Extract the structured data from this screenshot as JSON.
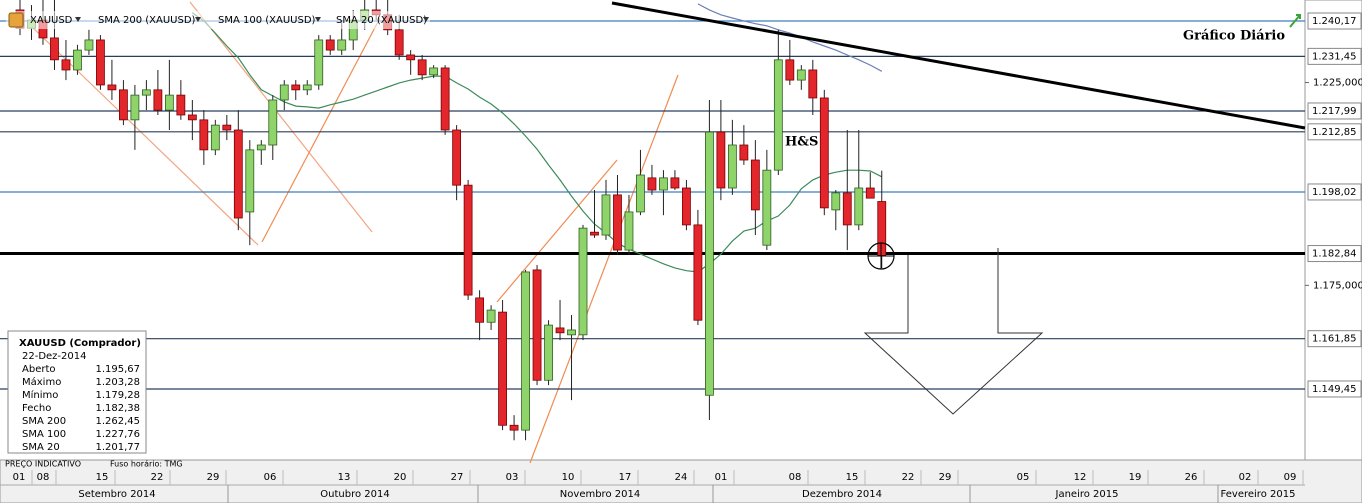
{
  "chart_data": {
    "type": "candlestick",
    "symbol": "XAUUSD",
    "up_color": "#8fd46a",
    "down_color": "#e3262c",
    "ylim": [
      1.13194,
      1.24535
    ],
    "yticks": [
      {
        "value": 1.225,
        "label": "1.225,000"
      },
      {
        "value": 1.175,
        "label": "1.175,000"
      }
    ],
    "levels": [
      {
        "value": 1.24017,
        "label": "1.240,17",
        "color": "#3d7fc1"
      },
      {
        "value": 1.23145,
        "label": "1.231,45",
        "color": "#2a3f5f"
      },
      {
        "value": 1.21799,
        "label": "1.217,99",
        "color": "#2a3f5f"
      },
      {
        "value": 1.21285,
        "label": "1.212,85",
        "color": "#2a3f5f"
      },
      {
        "value": 1.19802,
        "label": "1.198,02",
        "color": "#3d7fc1"
      },
      {
        "value": 1.18284,
        "label": "1.182,84",
        "color": "#000000"
      },
      {
        "value": 1.16185,
        "label": "1.161,85",
        "color": "#2a3f5f"
      },
      {
        "value": 1.14945,
        "label": "1.149,45",
        "color": "#2a3f5f"
      }
    ],
    "candles": {
      "open": [
        1.2429,
        1.2384,
        1.2404,
        1.236,
        1.2306,
        1.2281,
        1.233,
        1.2355,
        1.2244,
        1.2232,
        1.2158,
        1.2219,
        1.2232,
        1.2182,
        1.2219,
        1.217,
        1.2158,
        1.2084,
        1.2145,
        1.2133,
        1.1931,
        1.2084,
        1.2096,
        1.2207,
        1.2244,
        1.2232,
        1.2244,
        1.2355,
        1.233,
        1.2355,
        1.2404,
        1.2429,
        1.2417,
        1.238,
        1.2318,
        1.2306,
        1.2269,
        1.2286,
        1.2133,
        1.1997,
        1.1719,
        1.1659,
        1.1684,
        1.1405,
        1.1393,
        1.1788,
        1.1516,
        1.1645,
        1.1628,
        1.1628,
        1.1881,
        1.1874,
        1.1973,
        1.1837,
        1.1931,
        1.2015,
        1.1985,
        1.2015,
        1.199,
        1.1899,
        1.1479,
        1.2128,
        1.199,
        1.2096,
        1.2059,
        1.1849,
        1.2034,
        1.2306,
        1.2256,
        1.2281,
        1.2212,
        1.1936,
        1.1978,
        1.1899,
        1.199,
        1.19567
      ],
      "high": [
        1.2454,
        1.2441,
        1.2454,
        1.2454,
        1.2355,
        1.2343,
        1.238,
        1.2367,
        1.2306,
        1.2256,
        1.2244,
        1.2256,
        1.2281,
        1.2306,
        1.2256,
        1.2207,
        1.2182,
        1.2158,
        1.217,
        1.2182,
        1.2108,
        1.2108,
        1.2219,
        1.2256,
        1.2256,
        1.2256,
        1.2367,
        1.2367,
        1.2404,
        1.2429,
        1.2454,
        1.2454,
        1.2454,
        1.2417,
        1.233,
        1.2318,
        1.2293,
        1.2293,
        1.2145,
        1.201,
        1.1738,
        1.1701,
        1.1714,
        1.143,
        1.1788,
        1.18,
        1.1664,
        1.1714,
        1.1677,
        1.1899,
        1.1985,
        1.201,
        1.2022,
        1.1973,
        1.2084,
        1.2047,
        1.2034,
        1.2034,
        1.201,
        1.1936,
        1.2207,
        1.2207,
        1.2158,
        1.2145,
        1.2108,
        1.2084,
        1.238,
        1.2355,
        1.2293,
        1.2306,
        1.2232,
        1.1985,
        1.2133,
        1.2133,
        1.2029,
        1.20328
      ],
      "low": [
        1.2367,
        1.2355,
        1.2343,
        1.2281,
        1.2256,
        1.2269,
        1.2318,
        1.2232,
        1.2207,
        1.2145,
        1.2084,
        1.2182,
        1.217,
        1.2133,
        1.2158,
        1.2108,
        1.2047,
        1.2071,
        1.2108,
        1.1886,
        1.1849,
        1.2047,
        1.2059,
        1.2182,
        1.2207,
        1.2219,
        1.2232,
        1.2318,
        1.2318,
        1.233,
        1.238,
        1.2404,
        1.2367,
        1.2306,
        1.2269,
        1.2256,
        1.2261,
        1.2121,
        1.196,
        1.1714,
        1.1615,
        1.164,
        1.1393,
        1.1368,
        1.1368,
        1.1504,
        1.1504,
        1.1615,
        1.1467,
        1.1615,
        1.1867,
        1.1862,
        1.1825,
        1.1825,
        1.1923,
        1.1973,
        1.1923,
        1.1985,
        1.1886,
        1.1652,
        1.1418,
        1.196,
        1.1973,
        1.2047,
        1.1874,
        1.1837,
        1.2022,
        1.2244,
        1.2232,
        1.217,
        1.1923,
        1.1886,
        1.1837,
        1.1886,
        1.1965,
        1.17928
      ],
      "close": [
        1.2384,
        1.2404,
        1.236,
        1.2306,
        1.2281,
        1.233,
        1.2355,
        1.2244,
        1.2232,
        1.2158,
        1.2219,
        1.2232,
        1.2182,
        1.2219,
        1.217,
        1.2158,
        1.2084,
        1.2145,
        1.2133,
        1.1916,
        1.2084,
        1.2096,
        1.2207,
        1.2244,
        1.2232,
        1.2244,
        1.2355,
        1.233,
        1.2355,
        1.2404,
        1.2429,
        1.2417,
        1.238,
        1.2318,
        1.2306,
        1.2269,
        1.2286,
        1.2133,
        1.1997,
        1.1726,
        1.1659,
        1.1689,
        1.1405,
        1.1393,
        1.1783,
        1.1516,
        1.1652,
        1.1633,
        1.164,
        1.1891,
        1.1874,
        1.1973,
        1.1837,
        1.1931,
        1.2022,
        1.1985,
        1.2015,
        1.199,
        1.1899,
        1.1664,
        1.2128,
        1.199,
        1.2096,
        1.2059,
        1.1936,
        1.2034,
        1.2306,
        1.2256,
        1.2281,
        1.2212,
        1.1941,
        1.1978,
        1.1899,
        1.199,
        1.1965,
        1.18238
      ]
    },
    "series": [
      {
        "name": "SMA 200 (XAUUSD)",
        "color": "#d9262c"
      },
      {
        "name": "SMA 100 (XAUUSD)",
        "color": "#3b6fb6",
        "line_color": "#6b7fb8",
        "values": [
          null,
          null,
          null,
          null,
          null,
          null,
          null,
          null,
          null,
          null,
          null,
          null,
          null,
          null,
          null,
          null,
          null,
          null,
          null,
          null,
          null,
          null,
          null,
          null,
          null,
          null,
          null,
          null,
          null,
          null,
          null,
          null,
          null,
          null,
          null,
          null,
          null,
          null,
          null,
          null,
          null,
          null,
          null,
          null,
          null,
          null,
          null,
          null,
          null,
          null,
          null,
          null,
          null,
          null,
          null,
          null,
          null,
          null,
          null,
          1.2444,
          1.2429,
          1.2417,
          1.2409,
          1.2402,
          1.2395,
          1.239,
          1.238,
          1.2372,
          1.2362,
          1.235,
          1.234,
          1.233,
          1.2318,
          1.2306,
          1.2293,
          1.22776
        ]
      },
      {
        "name": "SMA 20 (XAUUSD)",
        "color": "#3a8a3a",
        "line_color": "#3d8b5a",
        "values": [
          null,
          null,
          null,
          null,
          null,
          null,
          null,
          null,
          null,
          null,
          null,
          null,
          null,
          null,
          null,
          1.2422,
          1.2402,
          1.2372,
          1.234,
          1.2311,
          1.2269,
          1.2232,
          1.2217,
          1.2202,
          1.2192,
          1.219,
          1.2187,
          1.2195,
          1.2202,
          1.2209,
          1.2219,
          1.2229,
          1.2239,
          1.2249,
          1.2256,
          1.2261,
          1.2266,
          1.2266,
          1.2249,
          1.2234,
          1.2214,
          1.2197,
          1.2175,
          1.2148,
          1.2118,
          1.2086,
          1.2047,
          1.201,
          1.197,
          1.1933,
          1.1901,
          1.1879,
          1.1854,
          1.1839,
          1.1827,
          1.1815,
          1.1803,
          1.1793,
          1.1786,
          1.1783,
          1.1803,
          1.1827,
          1.1859,
          1.1884,
          1.1891,
          1.1909,
          1.1921,
          1.1948,
          1.1988,
          1.201,
          1.2022,
          1.2029,
          1.2034,
          1.2034,
          1.2032,
          1.20177
        ]
      }
    ],
    "annotations": [
      "H&S",
      "Gráfico Diário"
    ],
    "info": {
      "title": "XAUUSD (Comprador)",
      "date": "22-Dez-2014",
      "rows": [
        {
          "label": "Aberto",
          "value": "1.195,67"
        },
        {
          "label": "Máximo",
          "value": "1.203,28"
        },
        {
          "label": "Mínimo",
          "value": "1.179,28"
        },
        {
          "label": "Fecho",
          "value": "1.182,38"
        },
        {
          "label": "SMA 200",
          "value": "1.262,45"
        },
        {
          "label": "SMA 100",
          "value": "1.227,76"
        },
        {
          "label": "SMA 20",
          "value": "1.201,77"
        }
      ]
    },
    "footer": [
      "PREÇO INDICATIVO",
      "Fuso horário: TMG"
    ],
    "days": [
      "01",
      "08",
      "15",
      "22",
      "29",
      "06",
      "13",
      "20",
      "27",
      "03",
      "10",
      "17",
      "24",
      "01",
      "08",
      "15",
      "22",
      "29",
      "05",
      "12",
      "19",
      "26",
      "02",
      "09"
    ],
    "months": [
      "Setembro 2014",
      "Outubro 2014",
      "Novembro 2014",
      "Dezembro 2014",
      "Janeiro 2015",
      "Fevereiro 2015"
    ]
  }
}
